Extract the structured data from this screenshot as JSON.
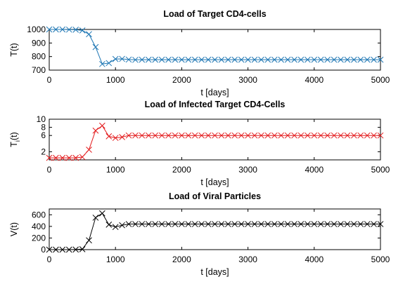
{
  "chart_data": [
    {
      "type": "line",
      "title": "Load of Target CD4-cells",
      "xlabel": "t [days]",
      "ylabel": "T(t)",
      "xlim": [
        0,
        5000
      ],
      "ylim": [
        700,
        1000
      ],
      "xticks": [
        0,
        1000,
        2000,
        3000,
        4000,
        5000
      ],
      "yticks": [
        700,
        800,
        900,
        1000
      ],
      "grid": false,
      "marker": "x",
      "color": "#1f77b4",
      "series": [
        {
          "x": [
            0,
            100,
            200,
            300,
            400,
            500,
            600,
            700,
            800,
            900,
            1000,
            1100,
            1200,
            1300,
            1400,
            1500,
            1600,
            1700,
            1800,
            1900,
            2000,
            2100,
            2200,
            2300,
            2400,
            2500,
            2600,
            2700,
            2800,
            2900,
            3000,
            3100,
            3200,
            3300,
            3400,
            3500,
            3600,
            3700,
            3800,
            3900,
            4000,
            4100,
            4200,
            4300,
            4400,
            4500,
            4600,
            4700,
            4800,
            4900,
            5000
          ],
          "y": [
            1000,
            1000,
            1000,
            999,
            998,
            993,
            965,
            870,
            745,
            752,
            782,
            783,
            778,
            776,
            777,
            777,
            777,
            777,
            777,
            777,
            777,
            777,
            777,
            777,
            777,
            777,
            777,
            777,
            777,
            777,
            777,
            777,
            777,
            777,
            777,
            777,
            777,
            777,
            777,
            777,
            777,
            777,
            777,
            777,
            777,
            777,
            777,
            777,
            777,
            777,
            777
          ]
        }
      ]
    },
    {
      "type": "line",
      "title": "Load of Infected Target CD4-Cells",
      "xlabel": "t [days]",
      "ylabel": "T",
      "ylabel_sub": "i",
      "ylabel_suffix": "(t)",
      "xlim": [
        0,
        5000
      ],
      "ylim": [
        0,
        10
      ],
      "xticks": [
        0,
        1000,
        2000,
        3000,
        4000,
        5000
      ],
      "yticks": [
        2,
        6,
        8,
        10
      ],
      "grid": false,
      "marker": "x",
      "color": "#e31a1c",
      "series": [
        {
          "x": [
            0,
            100,
            200,
            300,
            400,
            500,
            600,
            700,
            800,
            900,
            1000,
            1100,
            1200,
            1300,
            1400,
            1500,
            1600,
            1700,
            1800,
            1900,
            2000,
            2100,
            2200,
            2300,
            2400,
            2500,
            2600,
            2700,
            2800,
            2900,
            3000,
            3100,
            3200,
            3300,
            3400,
            3500,
            3600,
            3700,
            3800,
            3900,
            4000,
            4100,
            4200,
            4300,
            4400,
            4500,
            4600,
            4700,
            4800,
            4900,
            5000
          ],
          "y": [
            0.5,
            0.5,
            0.5,
            0.5,
            0.5,
            0.7,
            2.5,
            7.2,
            8.4,
            5.8,
            5.4,
            5.6,
            6.0,
            6.0,
            6.0,
            6.0,
            6.0,
            6.0,
            6.0,
            6.0,
            6.0,
            6.0,
            6.0,
            6.0,
            6.0,
            6.0,
            6.0,
            6.0,
            6.0,
            6.0,
            6.0,
            6.0,
            6.0,
            6.0,
            6.0,
            6.0,
            6.0,
            6.0,
            6.0,
            6.0,
            6.0,
            6.0,
            6.0,
            6.0,
            6.0,
            6.0,
            6.0,
            6.0,
            6.0,
            6.0,
            6.0
          ]
        }
      ]
    },
    {
      "type": "line",
      "title": "Load of Viral Particles",
      "xlabel": "t [days]",
      "ylabel": "V(t)",
      "xlim": [
        0,
        5000
      ],
      "ylim": [
        0,
        700
      ],
      "xticks": [
        0,
        1000,
        2000,
        3000,
        4000,
        5000
      ],
      "yticks": [
        0,
        200,
        400,
        600
      ],
      "grid": false,
      "marker": "x",
      "color": "#000000",
      "series": [
        {
          "x": [
            0,
            100,
            200,
            300,
            400,
            500,
            600,
            700,
            800,
            900,
            1000,
            1100,
            1200,
            1300,
            1400,
            1500,
            1600,
            1700,
            1800,
            1900,
            2000,
            2100,
            2200,
            2300,
            2400,
            2500,
            2600,
            2700,
            2800,
            2900,
            3000,
            3100,
            3200,
            3300,
            3400,
            3500,
            3600,
            3700,
            3800,
            3900,
            4000,
            4100,
            4200,
            4300,
            4400,
            4500,
            4600,
            4700,
            4800,
            4900,
            5000
          ],
          "y": [
            0,
            0,
            0,
            0,
            2,
            8,
            160,
            550,
            625,
            430,
            390,
            420,
            440,
            440,
            440,
            440,
            440,
            440,
            440,
            440,
            440,
            440,
            440,
            440,
            440,
            440,
            440,
            440,
            440,
            440,
            440,
            440,
            440,
            440,
            440,
            440,
            440,
            440,
            440,
            440,
            440,
            440,
            440,
            440,
            440,
            440,
            440,
            440,
            440,
            440,
            440
          ]
        }
      ]
    }
  ]
}
